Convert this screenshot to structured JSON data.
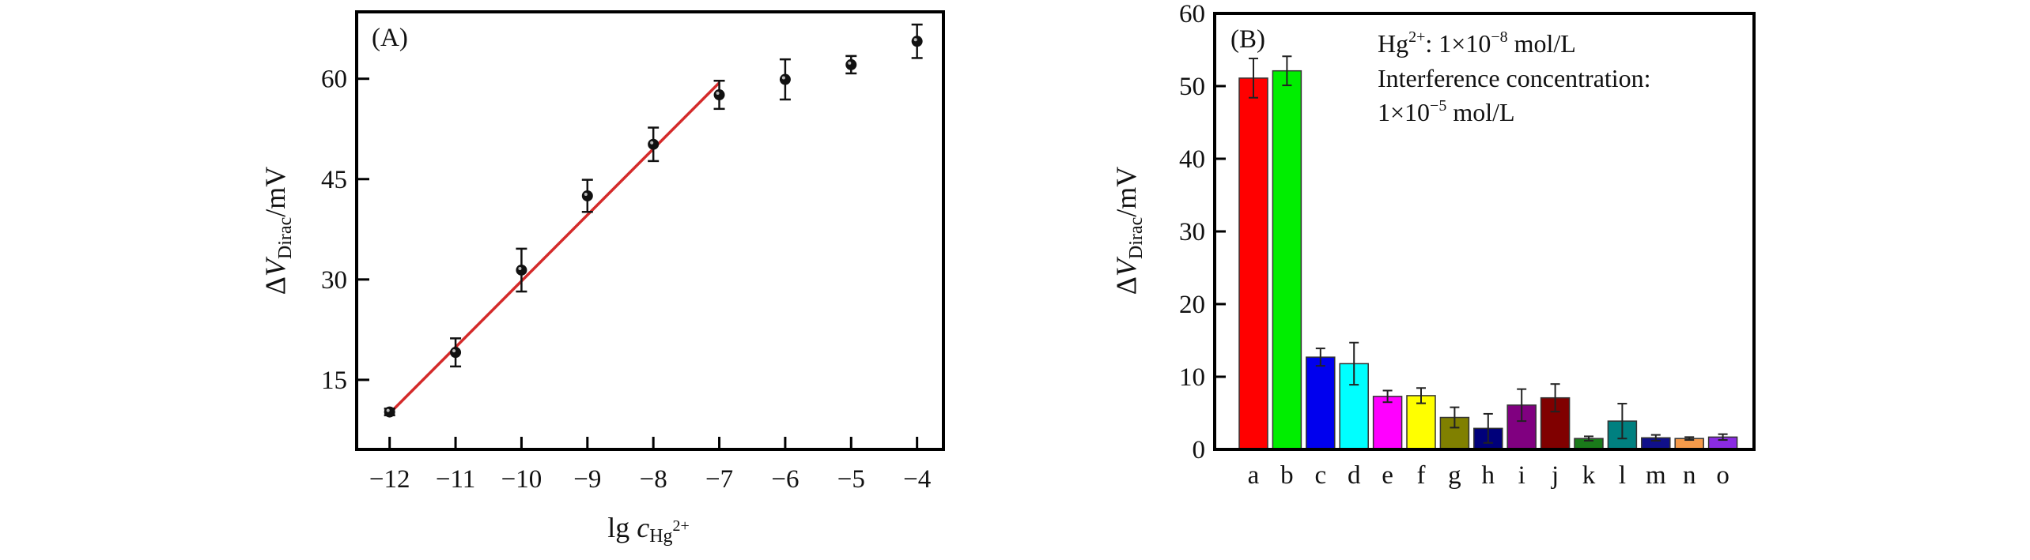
{
  "chart_data": [
    {
      "type": "scatter",
      "panel_label": "(A)",
      "xlabel": {
        "main": "lg ",
        "var": "c",
        "sub": "Hg",
        "sup": "2+"
      },
      "ylabel": {
        "delta": "Δ",
        "var": "V",
        "sub": "Dirac",
        "unit": "/mV"
      },
      "xlim": [
        -12.5,
        -3.6
      ],
      "ylim": [
        4.6,
        70
      ],
      "x_ticks": [
        -12,
        -11,
        -10,
        -9,
        -8,
        -7,
        -6,
        -5,
        -4
      ],
      "x_tick_labels": [
        "−12",
        "−11",
        "−10",
        "−9",
        "−8",
        "−7",
        "−6",
        "−5",
        "−4"
      ],
      "y_ticks": [
        15,
        30,
        45,
        60
      ],
      "y_tick_labels": [
        "15",
        "30",
        "45",
        "60"
      ],
      "grid": false,
      "marker_color": "#111111",
      "points": {
        "x": [
          -12,
          -11,
          -10,
          -9,
          -8,
          -7,
          -6,
          -5,
          -4
        ],
        "y": [
          10.2,
          19.1,
          31.4,
          42.5,
          50.2,
          57.6,
          59.9,
          62.1,
          65.6
        ],
        "error": [
          0.5,
          2.1,
          3.2,
          2.4,
          2.5,
          2.1,
          3.0,
          1.3,
          2.5
        ]
      },
      "fit_line": {
        "color": "#d42a2a",
        "x": [
          -12,
          -7
        ],
        "y": [
          10.0,
          59.4
        ]
      }
    },
    {
      "type": "bar",
      "panel_label": "(B)",
      "ylabel": {
        "delta": "Δ",
        "var": "V",
        "sub": "Dirac",
        "unit": "/mV"
      },
      "ylim": [
        0,
        60
      ],
      "y_ticks": [
        0,
        10,
        20,
        30,
        40,
        50,
        60
      ],
      "y_tick_labels": [
        "0",
        "10",
        "20",
        "30",
        "40",
        "50",
        "60"
      ],
      "grid": false,
      "categories": [
        "a",
        "b",
        "c",
        "d",
        "e",
        "f",
        "g",
        "h",
        "i",
        "j",
        "k",
        "l",
        "m",
        "n",
        "o"
      ],
      "values": [
        51.1,
        52.1,
        12.7,
        11.8,
        7.3,
        7.4,
        4.4,
        2.9,
        6.1,
        7.1,
        1.5,
        3.9,
        1.6,
        1.5,
        1.7
      ],
      "errors": [
        2.7,
        2.0,
        1.2,
        2.9,
        0.8,
        1.05,
        1.4,
        2.0,
        2.2,
        1.9,
        0.3,
        2.4,
        0.4,
        0.2,
        0.4
      ],
      "colors": [
        "#ff0000",
        "#00ee00",
        "#0000ee",
        "#00ffff",
        "#ff00ff",
        "#ffff00",
        "#808000",
        "#00007a",
        "#800080",
        "#800000",
        "#1a7a1a",
        "#008080",
        "#10108a",
        "#f59a4a",
        "#8a2be2"
      ],
      "annotation": {
        "line1": {
          "pre": "Hg",
          "sup": "2+",
          "mid": ": 1×10",
          "sup2": "−8",
          "post": " mol/L"
        },
        "line2": "Interference concentration:",
        "line3": {
          "pre": "1×10",
          "sup": "−5",
          "post": " mol/L"
        }
      }
    }
  ]
}
